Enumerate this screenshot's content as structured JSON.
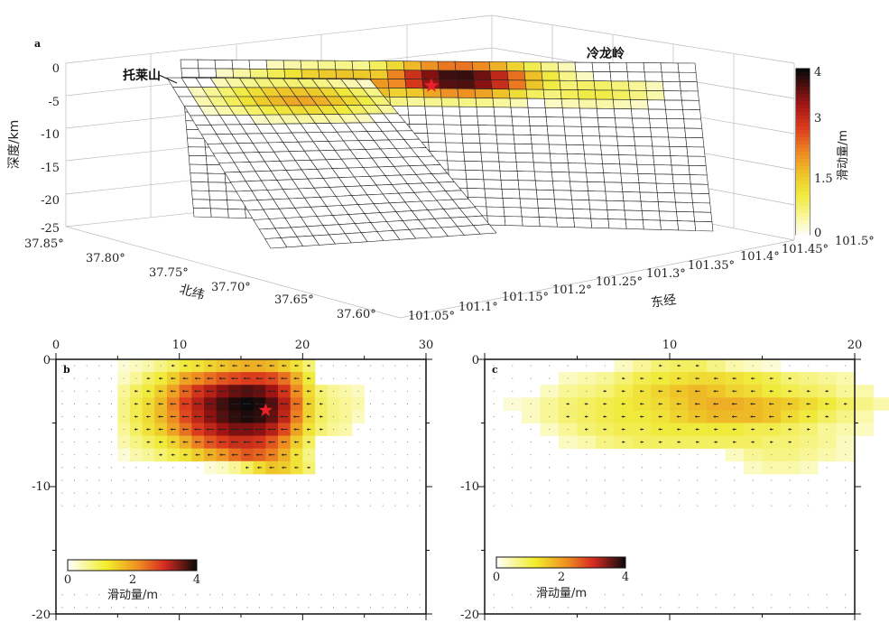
{
  "chart_data": [
    {
      "panel": "a",
      "type": "heatmap",
      "zlabel": "深度/km",
      "xlabel": "东经",
      "ylabel": "北纬",
      "z_ticks": [
        "0",
        "-5",
        "-10",
        "-15",
        "-20",
        "-25"
      ],
      "lon_ticks": [
        "101.05°",
        "101.1°",
        "101.15°",
        "101.2°",
        "101.25°",
        "101.3°",
        "101.35°",
        "101.4°",
        "101.45°",
        "101.5°"
      ],
      "lat_ticks": [
        "37.85°",
        "37.80°",
        "37.75°",
        "37.70°",
        "37.65°",
        "37.60°"
      ],
      "fault_labels": [
        "托莱山",
        "冷龙岭"
      ],
      "colorbar": {
        "label": "滑动量/m",
        "ticks": [
          "4",
          "3",
          "1.5",
          "0"
        ],
        "range": [
          0,
          4
        ]
      }
    },
    {
      "panel": "b",
      "type": "heatmap",
      "x_ticks": [
        "0",
        "10",
        "20",
        "30"
      ],
      "xlim": [
        0,
        30
      ],
      "y_ticks": [
        "0",
        "-10",
        "-20"
      ],
      "ylim": [
        -20,
        0
      ],
      "colorbar": {
        "label": "滑动量/m",
        "ticks": [
          "0",
          "2",
          "4"
        ],
        "range": [
          0,
          4
        ]
      },
      "peak": {
        "x": 17,
        "y": -4,
        "value": 4.0
      },
      "rows": [
        {
          "y": -0.5,
          "x0": 5,
          "values": [
            0.2,
            0.3,
            0.4,
            0.6,
            0.8,
            1.0,
            1.1,
            1.3,
            1.5,
            1.6,
            1.7,
            1.7,
            1.6,
            1.4,
            1.1,
            0.7
          ]
        },
        {
          "y": -1.5,
          "x0": 5,
          "values": [
            0.3,
            0.5,
            0.8,
            1.0,
            1.4,
            1.8,
            2.0,
            2.2,
            2.4,
            2.5,
            2.6,
            2.6,
            2.5,
            2.2,
            1.7,
            1.0
          ]
        },
        {
          "y": -2.5,
          "x0": 5,
          "values": [
            0.5,
            0.8,
            1.0,
            1.4,
            1.8,
            2.3,
            2.7,
            3.0,
            3.3,
            3.5,
            3.6,
            3.5,
            3.2,
            2.7,
            2.0,
            1.2,
            0.7,
            0.5,
            0.4,
            0.3
          ]
        },
        {
          "y": -3.5,
          "x0": 5,
          "values": [
            0.6,
            0.9,
            1.2,
            1.6,
            2.1,
            2.6,
            3.0,
            3.4,
            3.7,
            3.9,
            4.0,
            3.9,
            3.6,
            3.0,
            2.2,
            1.3,
            0.8,
            0.6,
            0.5,
            0.4
          ]
        },
        {
          "y": -4.5,
          "x0": 5,
          "values": [
            0.6,
            0.9,
            1.2,
            1.6,
            2.0,
            2.5,
            2.9,
            3.3,
            3.6,
            3.8,
            3.9,
            3.8,
            3.5,
            2.9,
            2.1,
            1.3,
            0.8,
            0.6,
            0.5,
            0.3
          ]
        },
        {
          "y": -5.5,
          "x0": 5,
          "values": [
            0.5,
            0.8,
            1.1,
            1.4,
            1.8,
            2.2,
            2.6,
            2.9,
            3.2,
            3.4,
            3.4,
            3.3,
            3.0,
            2.5,
            1.8,
            1.1,
            0.7,
            0.5,
            0.4
          ]
        },
        {
          "y": -6.5,
          "x0": 5,
          "values": [
            0.4,
            0.6,
            0.8,
            1.0,
            1.3,
            1.7,
            2.1,
            2.4,
            2.6,
            2.8,
            2.8,
            2.7,
            2.4,
            2.0,
            1.4,
            0.8
          ]
        },
        {
          "y": -7.5,
          "x0": 5,
          "values": [
            0.2,
            0.4,
            0.5,
            0.7,
            0.9,
            1.1,
            1.4,
            1.7,
            1.9,
            2.2,
            2.4,
            2.3,
            2.1,
            1.7,
            1.1,
            0.6
          ]
        },
        {
          "y": -8.5,
          "x0": 12,
          "values": [
            0.2,
            0.3,
            0.5,
            0.8,
            1.2,
            1.5,
            1.4,
            1.1,
            0.7
          ]
        }
      ]
    },
    {
      "panel": "c",
      "type": "heatmap",
      "x_ticks": [
        "10",
        "20"
      ],
      "xlim": [
        0,
        20
      ],
      "y_ticks": [
        "0",
        "-10",
        "-20"
      ],
      "ylim": [
        -20,
        0
      ],
      "colorbar": {
        "label": "滑动量/m",
        "ticks": [
          "0",
          "2",
          "4"
        ],
        "range": [
          0,
          4
        ]
      },
      "rows": [
        {
          "y": -0.5,
          "x0": 7,
          "values": [
            0.3,
            0.5,
            0.7,
            0.8,
            0.8,
            0.6,
            0.4,
            0.3,
            0.2
          ]
        },
        {
          "y": -1.5,
          "x0": 4,
          "values": [
            0.3,
            0.4,
            0.5,
            0.7,
            0.9,
            1.0,
            1.1,
            1.2,
            1.2,
            1.1,
            1.0,
            0.9,
            0.7,
            0.6,
            0.5,
            0.4
          ]
        },
        {
          "y": -2.5,
          "x0": 3,
          "values": [
            0.3,
            0.5,
            0.6,
            0.7,
            0.9,
            1.1,
            1.3,
            1.5,
            1.6,
            1.5,
            1.3,
            1.2,
            1.0,
            0.9,
            0.8,
            0.7,
            0.5,
            0.4
          ]
        },
        {
          "y": -3.5,
          "x0": 1,
          "values": [
            0.2,
            0.3,
            0.5,
            0.7,
            0.8,
            0.9,
            1.0,
            1.1,
            1.2,
            1.4,
            1.6,
            1.7,
            1.7,
            1.6,
            1.5,
            1.4,
            1.2,
            1.0,
            0.8,
            0.6,
            0.4
          ]
        },
        {
          "y": -4.5,
          "x0": 2,
          "values": [
            0.3,
            0.5,
            0.7,
            0.8,
            0.9,
            1.0,
            1.0,
            1.1,
            1.3,
            1.5,
            1.6,
            1.6,
            1.6,
            1.5,
            1.2,
            1.0,
            0.8,
            0.6,
            0.4
          ]
        },
        {
          "y": -5.5,
          "x0": 3,
          "values": [
            0.3,
            0.5,
            0.7,
            0.8,
            0.9,
            0.9,
            1.0,
            1.0,
            1.0,
            1.0,
            1.0,
            0.9,
            0.9,
            0.8,
            0.7,
            0.5,
            0.4,
            0.3
          ]
        },
        {
          "y": -6.5,
          "x0": 4,
          "values": [
            0.3,
            0.4,
            0.6,
            0.7,
            0.8,
            0.8,
            0.8,
            0.8,
            0.8,
            0.8,
            0.8,
            0.7,
            0.7,
            0.6,
            0.5,
            0.3
          ]
        },
        {
          "y": -7.5,
          "x0": 13,
          "values": [
            0.3,
            0.5,
            0.6,
            0.6,
            0.5,
            0.4,
            0.3
          ]
        },
        {
          "y": -8.5,
          "x0": 14,
          "values": [
            0.3,
            0.4,
            0.4,
            0.3
          ]
        }
      ]
    }
  ]
}
